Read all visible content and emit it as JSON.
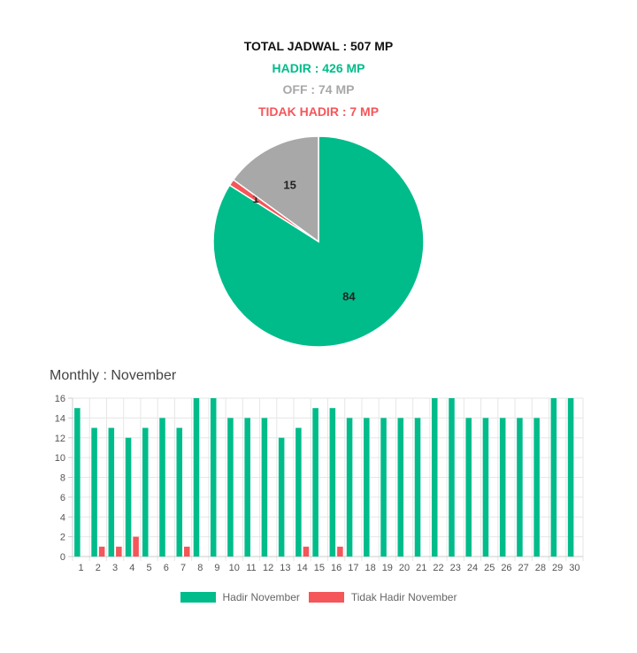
{
  "summary": {
    "total": "TOTAL JADWAL : 507 MP",
    "hadir": "HADIR : 426 MP",
    "off": "OFF : 74 MP",
    "tidak_hadir": "TIDAK HADIR : 7 MP"
  },
  "monthly_title": "Monthly : November",
  "colors": {
    "hadir": "#00bc8a",
    "off": "#a8a8a8",
    "tidak_hadir": "#f4565a"
  },
  "chart_data": [
    {
      "type": "pie",
      "values": [
        84,
        1,
        15
      ],
      "labels": [
        "84",
        "1",
        "15"
      ],
      "colors": [
        "#00bc8a",
        "#f4565a",
        "#a8a8a8"
      ]
    },
    {
      "type": "bar",
      "title": "Monthly : November",
      "categories": [
        "1",
        "2",
        "3",
        "4",
        "5",
        "6",
        "7",
        "8",
        "9",
        "10",
        "11",
        "12",
        "13",
        "14",
        "15",
        "16",
        "17",
        "18",
        "19",
        "20",
        "21",
        "22",
        "23",
        "24",
        "25",
        "26",
        "27",
        "28",
        "29",
        "30"
      ],
      "series": [
        {
          "name": "Hadir November",
          "color": "#00bc8a",
          "values": [
            15,
            13,
            13,
            12,
            13,
            14,
            13,
            16,
            16,
            14,
            14,
            14,
            12,
            13,
            15,
            15,
            14,
            14,
            14,
            14,
            14,
            16,
            16,
            14,
            14,
            14,
            14,
            14,
            16,
            16
          ]
        },
        {
          "name": "Tidak Hadir November",
          "color": "#f4565a",
          "values": [
            0,
            1,
            1,
            2,
            0,
            0,
            1,
            0,
            0,
            0,
            0,
            0,
            0,
            1,
            0,
            1,
            0,
            0,
            0,
            0,
            0,
            0,
            0,
            0,
            0,
            0,
            0,
            0,
            0,
            0
          ]
        }
      ],
      "yticks": [
        "0",
        "2",
        "4",
        "6",
        "8",
        "10",
        "12",
        "14",
        "16"
      ],
      "ylim": [
        0,
        16
      ],
      "grid": true,
      "legend": "bottom"
    }
  ]
}
